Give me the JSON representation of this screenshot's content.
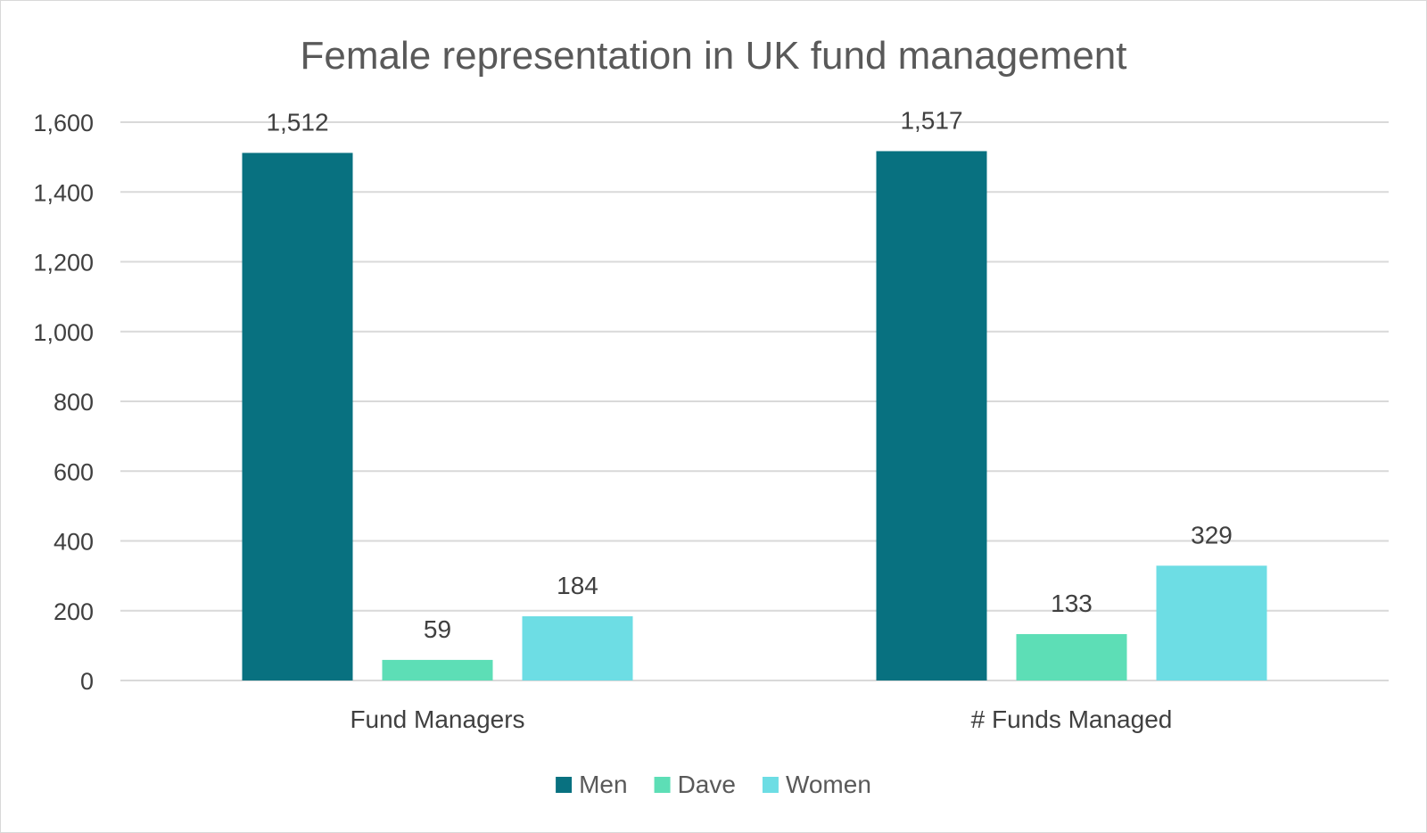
{
  "chart_data": {
    "type": "bar",
    "title": "Female representation in UK fund management",
    "xlabel": "",
    "ylabel": "",
    "categories": [
      "Fund Managers",
      "# Funds Managed"
    ],
    "series": [
      {
        "name": "Men",
        "values": [
          1512,
          1517
        ],
        "color": "#087180"
      },
      {
        "name": "Dave",
        "values": [
          59,
          133
        ],
        "color": "#5ddeb6"
      },
      {
        "name": "Women",
        "values": [
          184,
          329
        ],
        "color": "#6ddde4"
      }
    ],
    "data_labels": [
      [
        "1,512",
        "1,517"
      ],
      [
        "59",
        "133"
      ],
      [
        "184",
        "329"
      ]
    ],
    "ylim": [
      0,
      1600
    ],
    "yticks": [
      0,
      200,
      400,
      600,
      800,
      1000,
      1200,
      1400,
      1600
    ],
    "ytick_labels": [
      "0",
      "200",
      "400",
      "600",
      "800",
      "1,000",
      "1,200",
      "1,400",
      "1,600"
    ],
    "grid": true,
    "legend_position": "bottom"
  }
}
